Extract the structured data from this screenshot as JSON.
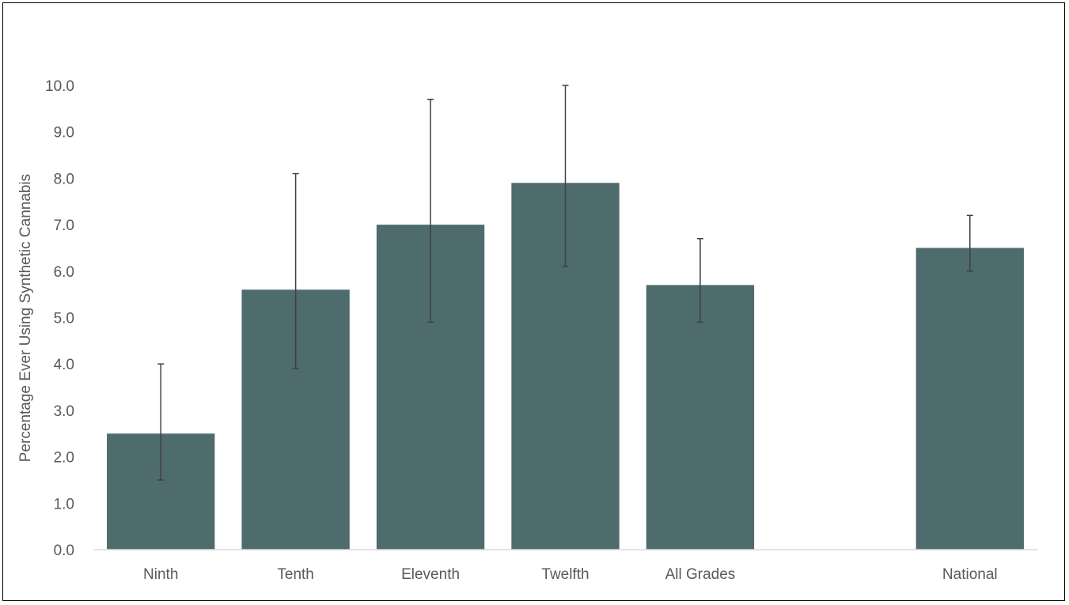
{
  "chart_data": {
    "type": "bar",
    "title": "",
    "xlabel": "",
    "ylabel": "Percentage Ever Using Synthetic Cannabis",
    "ylim": [
      0,
      10
    ],
    "yticks": [
      "0.0",
      "1.0",
      "2.0",
      "3.0",
      "4.0",
      "5.0",
      "6.0",
      "7.0",
      "8.0",
      "9.0",
      "10.0"
    ],
    "grid": false,
    "legend": "none",
    "categories": [
      "Ninth",
      "Tenth",
      "Eleventh",
      "Twelfth",
      "All Grades",
      "",
      "National"
    ],
    "values": [
      2.5,
      5.6,
      7.0,
      7.9,
      5.7,
      null,
      6.5
    ],
    "error_low": [
      1.5,
      3.9,
      4.9,
      6.1,
      4.9,
      null,
      6.0
    ],
    "error_high": [
      4.0,
      8.1,
      9.7,
      10.0,
      6.7,
      null,
      7.2
    ],
    "bar_color": "#4e6b6d",
    "error_bar_color": "#404040",
    "axis_color": "#d9d9d9"
  }
}
